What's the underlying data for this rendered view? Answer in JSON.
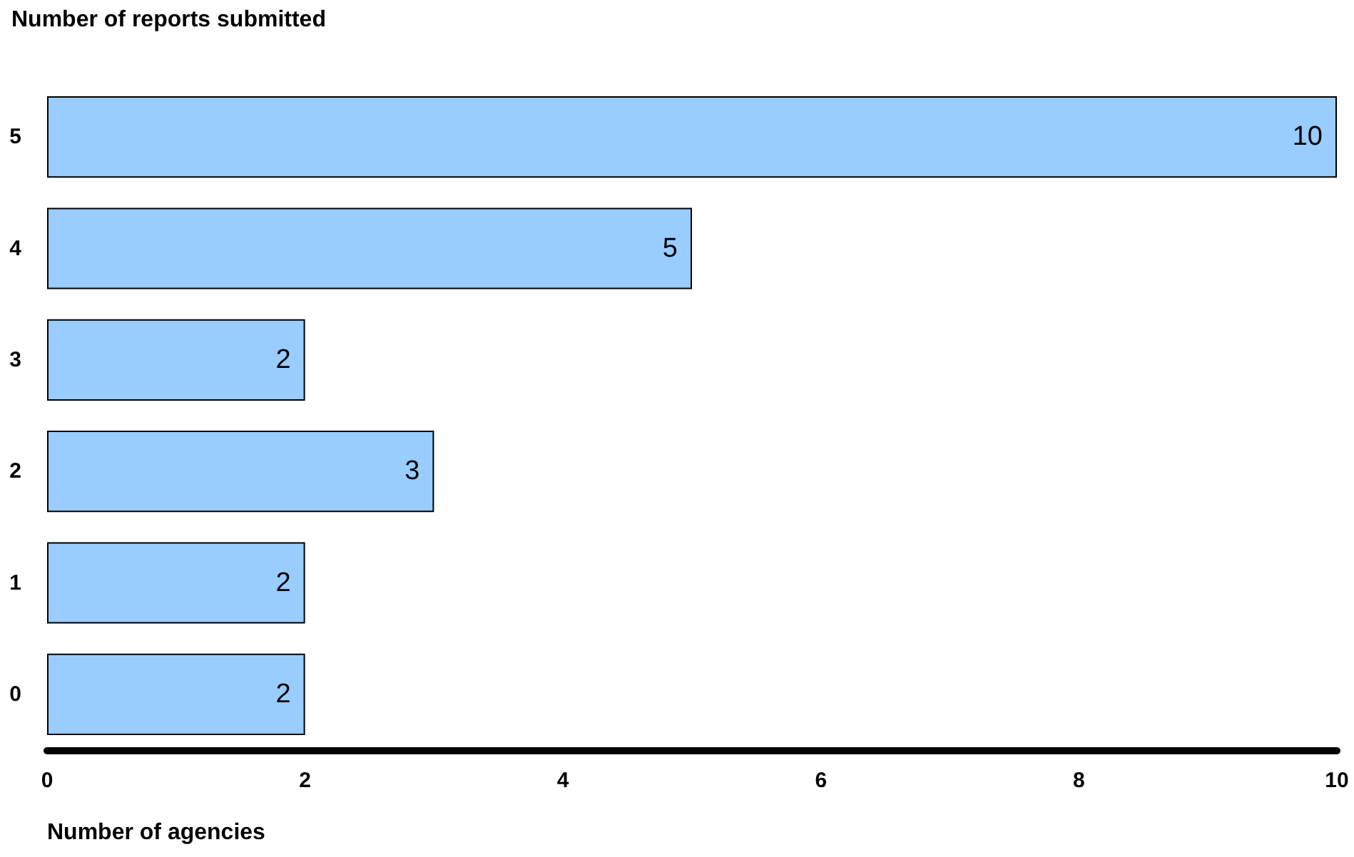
{
  "chart_data": {
    "type": "bar",
    "orientation": "horizontal",
    "ylabel": "Number of reports submitted",
    "xlabel": "Number of agencies",
    "categories": [
      "5",
      "4",
      "3",
      "2",
      "1",
      "0"
    ],
    "values": [
      10,
      5,
      2,
      3,
      2,
      2
    ],
    "color": "#99ccff",
    "xlim": [
      0,
      10
    ],
    "xticks": [
      0,
      2,
      4,
      6,
      8,
      10
    ],
    "grid": false,
    "data_labels": true
  }
}
